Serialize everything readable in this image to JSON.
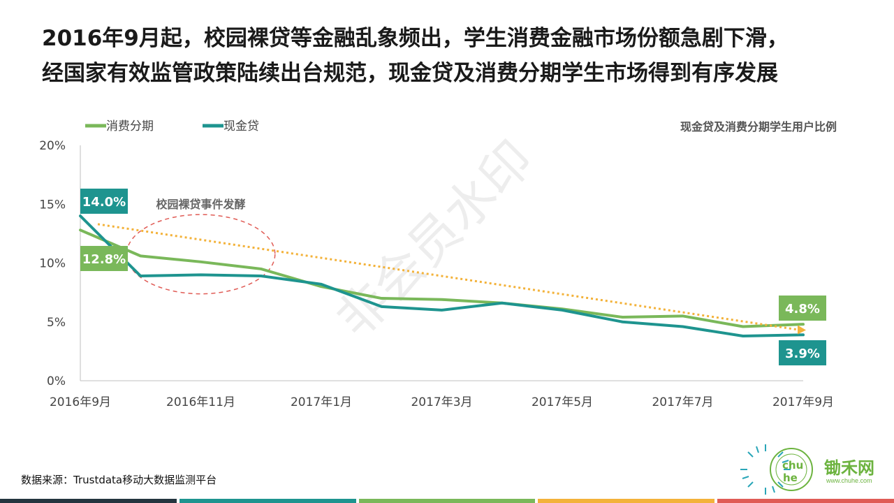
{
  "title": {
    "line1": "2016年9月起，校园裸贷等金融乱象频出，学生消费金融市场份额急剧下滑，",
    "line2": "经国家有效监管政策陆续出台规范，现金贷及消费分期学生市场得到有序发展"
  },
  "watermark": "非会员水印",
  "source": "数据来源：Trustdata移动大数据监测平台",
  "logo": {
    "text": "锄禾网",
    "url": "www.chuhe.com",
    "ring_text": "CHUHE MEANS ORGANIC"
  },
  "colors": {
    "installment": "#7ab85a",
    "cash_loan": "#1e948f",
    "trend": "#f3b23a",
    "annotation": "#e05c56",
    "bottom_bar": [
      "#24353f",
      "#1e948f",
      "#7ab85a",
      "#f3b23a",
      "#e05c56"
    ]
  },
  "chart_data": {
    "type": "line",
    "title": "现金贷及消费分期学生用户比例",
    "x": [
      "2016年9月",
      "2016年10月",
      "2016年11月",
      "2016年12月",
      "2017年1月",
      "2017年2月",
      "2017年3月",
      "2017年4月",
      "2017年5月",
      "2017年6月",
      "2017年7月",
      "2017年8月",
      "2017年9月"
    ],
    "x_tick_labels": [
      "2016年9月",
      "2016年11月",
      "2017年1月",
      "2017年3月",
      "2017年5月",
      "2017年7月",
      "2017年9月"
    ],
    "y_ticks": [
      "0%",
      "5%",
      "10%",
      "15%",
      "20%"
    ],
    "ylim": [
      0,
      20
    ],
    "y_unit": "%",
    "grid": false,
    "legend_position": "top-left",
    "series": [
      {
        "name": "消费分期",
        "color": "#7ab85a",
        "values": [
          12.8,
          10.6,
          10.1,
          9.5,
          8.0,
          7.0,
          6.9,
          6.6,
          6.1,
          5.4,
          5.5,
          4.6,
          4.8
        ],
        "labels": [
          {
            "index": 0,
            "text": "12.8%"
          },
          {
            "index": 12,
            "text": "4.8%"
          }
        ]
      },
      {
        "name": "现金贷",
        "color": "#1e948f",
        "values": [
          14.0,
          8.9,
          9.0,
          8.9,
          8.2,
          6.3,
          6.0,
          6.6,
          6.0,
          5.0,
          4.6,
          3.8,
          3.9
        ],
        "labels": [
          {
            "index": 0,
            "text": "14.0%"
          },
          {
            "index": 12,
            "text": "3.9%"
          }
        ]
      }
    ],
    "trend_line": {
      "from": {
        "x": "2016年9月",
        "y": 13.3
      },
      "to": {
        "x": "2017年9月",
        "y": 4.3
      }
    },
    "annotation": {
      "text": "校园裸贷事件发酵",
      "x_range": [
        "2016年10月",
        "2016年12月"
      ],
      "y_range": [
        7.5,
        14.0
      ]
    }
  }
}
